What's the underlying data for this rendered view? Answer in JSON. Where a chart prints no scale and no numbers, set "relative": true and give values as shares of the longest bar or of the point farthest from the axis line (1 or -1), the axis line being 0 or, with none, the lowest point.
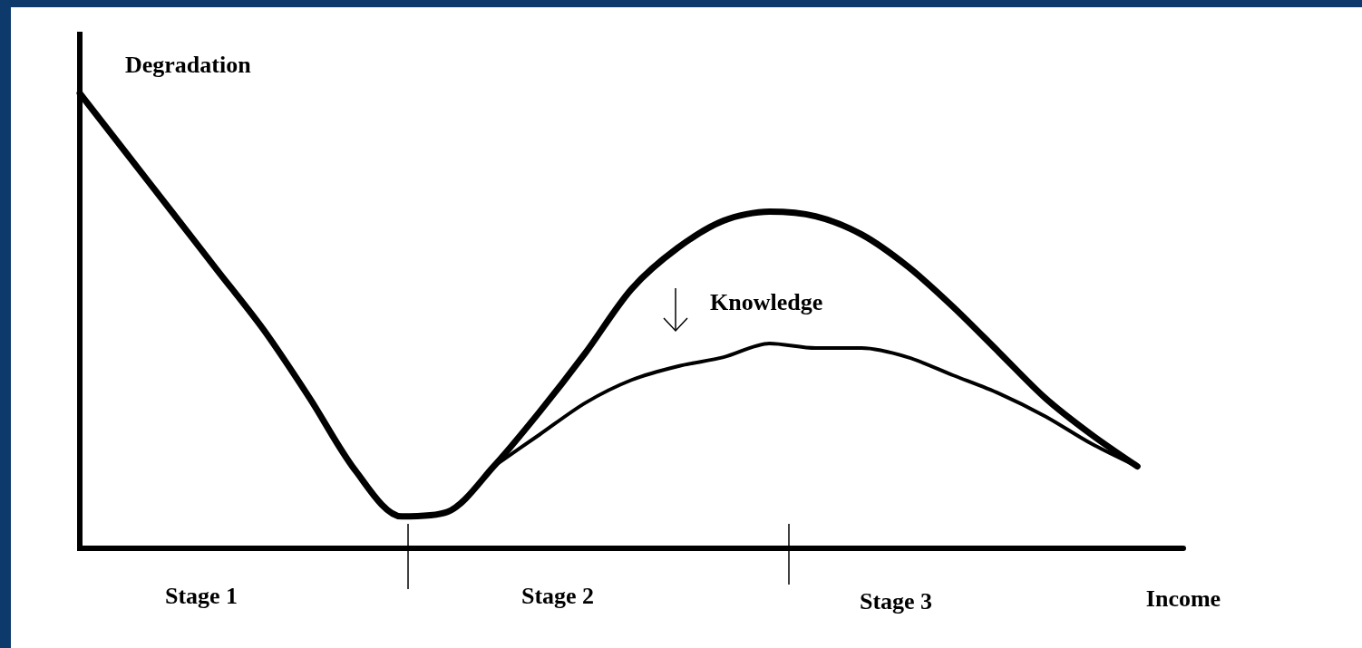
{
  "chart_data": {
    "type": "line",
    "relative": true,
    "xlabel": "Income",
    "ylabel": "Degradation",
    "categories": [
      null,
      null,
      null,
      null,
      null,
      null,
      null,
      null,
      null,
      null,
      null,
      null,
      null,
      null,
      null,
      null,
      null,
      null,
      null,
      null,
      null,
      null,
      null,
      null,
      null
    ],
    "series": [
      {
        "color": "#000000",
        "values": [
          1.0,
          0.87,
          0.74,
          0.61,
          0.48,
          0.33,
          0.17,
          0.07,
          0.08,
          0.18,
          0.3,
          0.43,
          0.57,
          0.66,
          0.72,
          0.74,
          0.73,
          0.69,
          0.62,
          0.53,
          0.43,
          0.33,
          0.25,
          0.18,
          null
        ]
      },
      {
        "color": "#000000",
        "values": [
          null,
          null,
          null,
          null,
          null,
          null,
          null,
          null,
          null,
          0.18,
          0.25,
          0.32,
          0.37,
          0.4,
          0.42,
          0.45,
          0.44,
          0.44,
          0.42,
          0.38,
          0.34,
          0.29,
          0.23,
          0.18,
          null
        ]
      }
    ],
    "annotations": [
      "Stage 1",
      "Stage 2",
      "Stage 3",
      "Knowledge"
    ],
    "marker": "none"
  }
}
